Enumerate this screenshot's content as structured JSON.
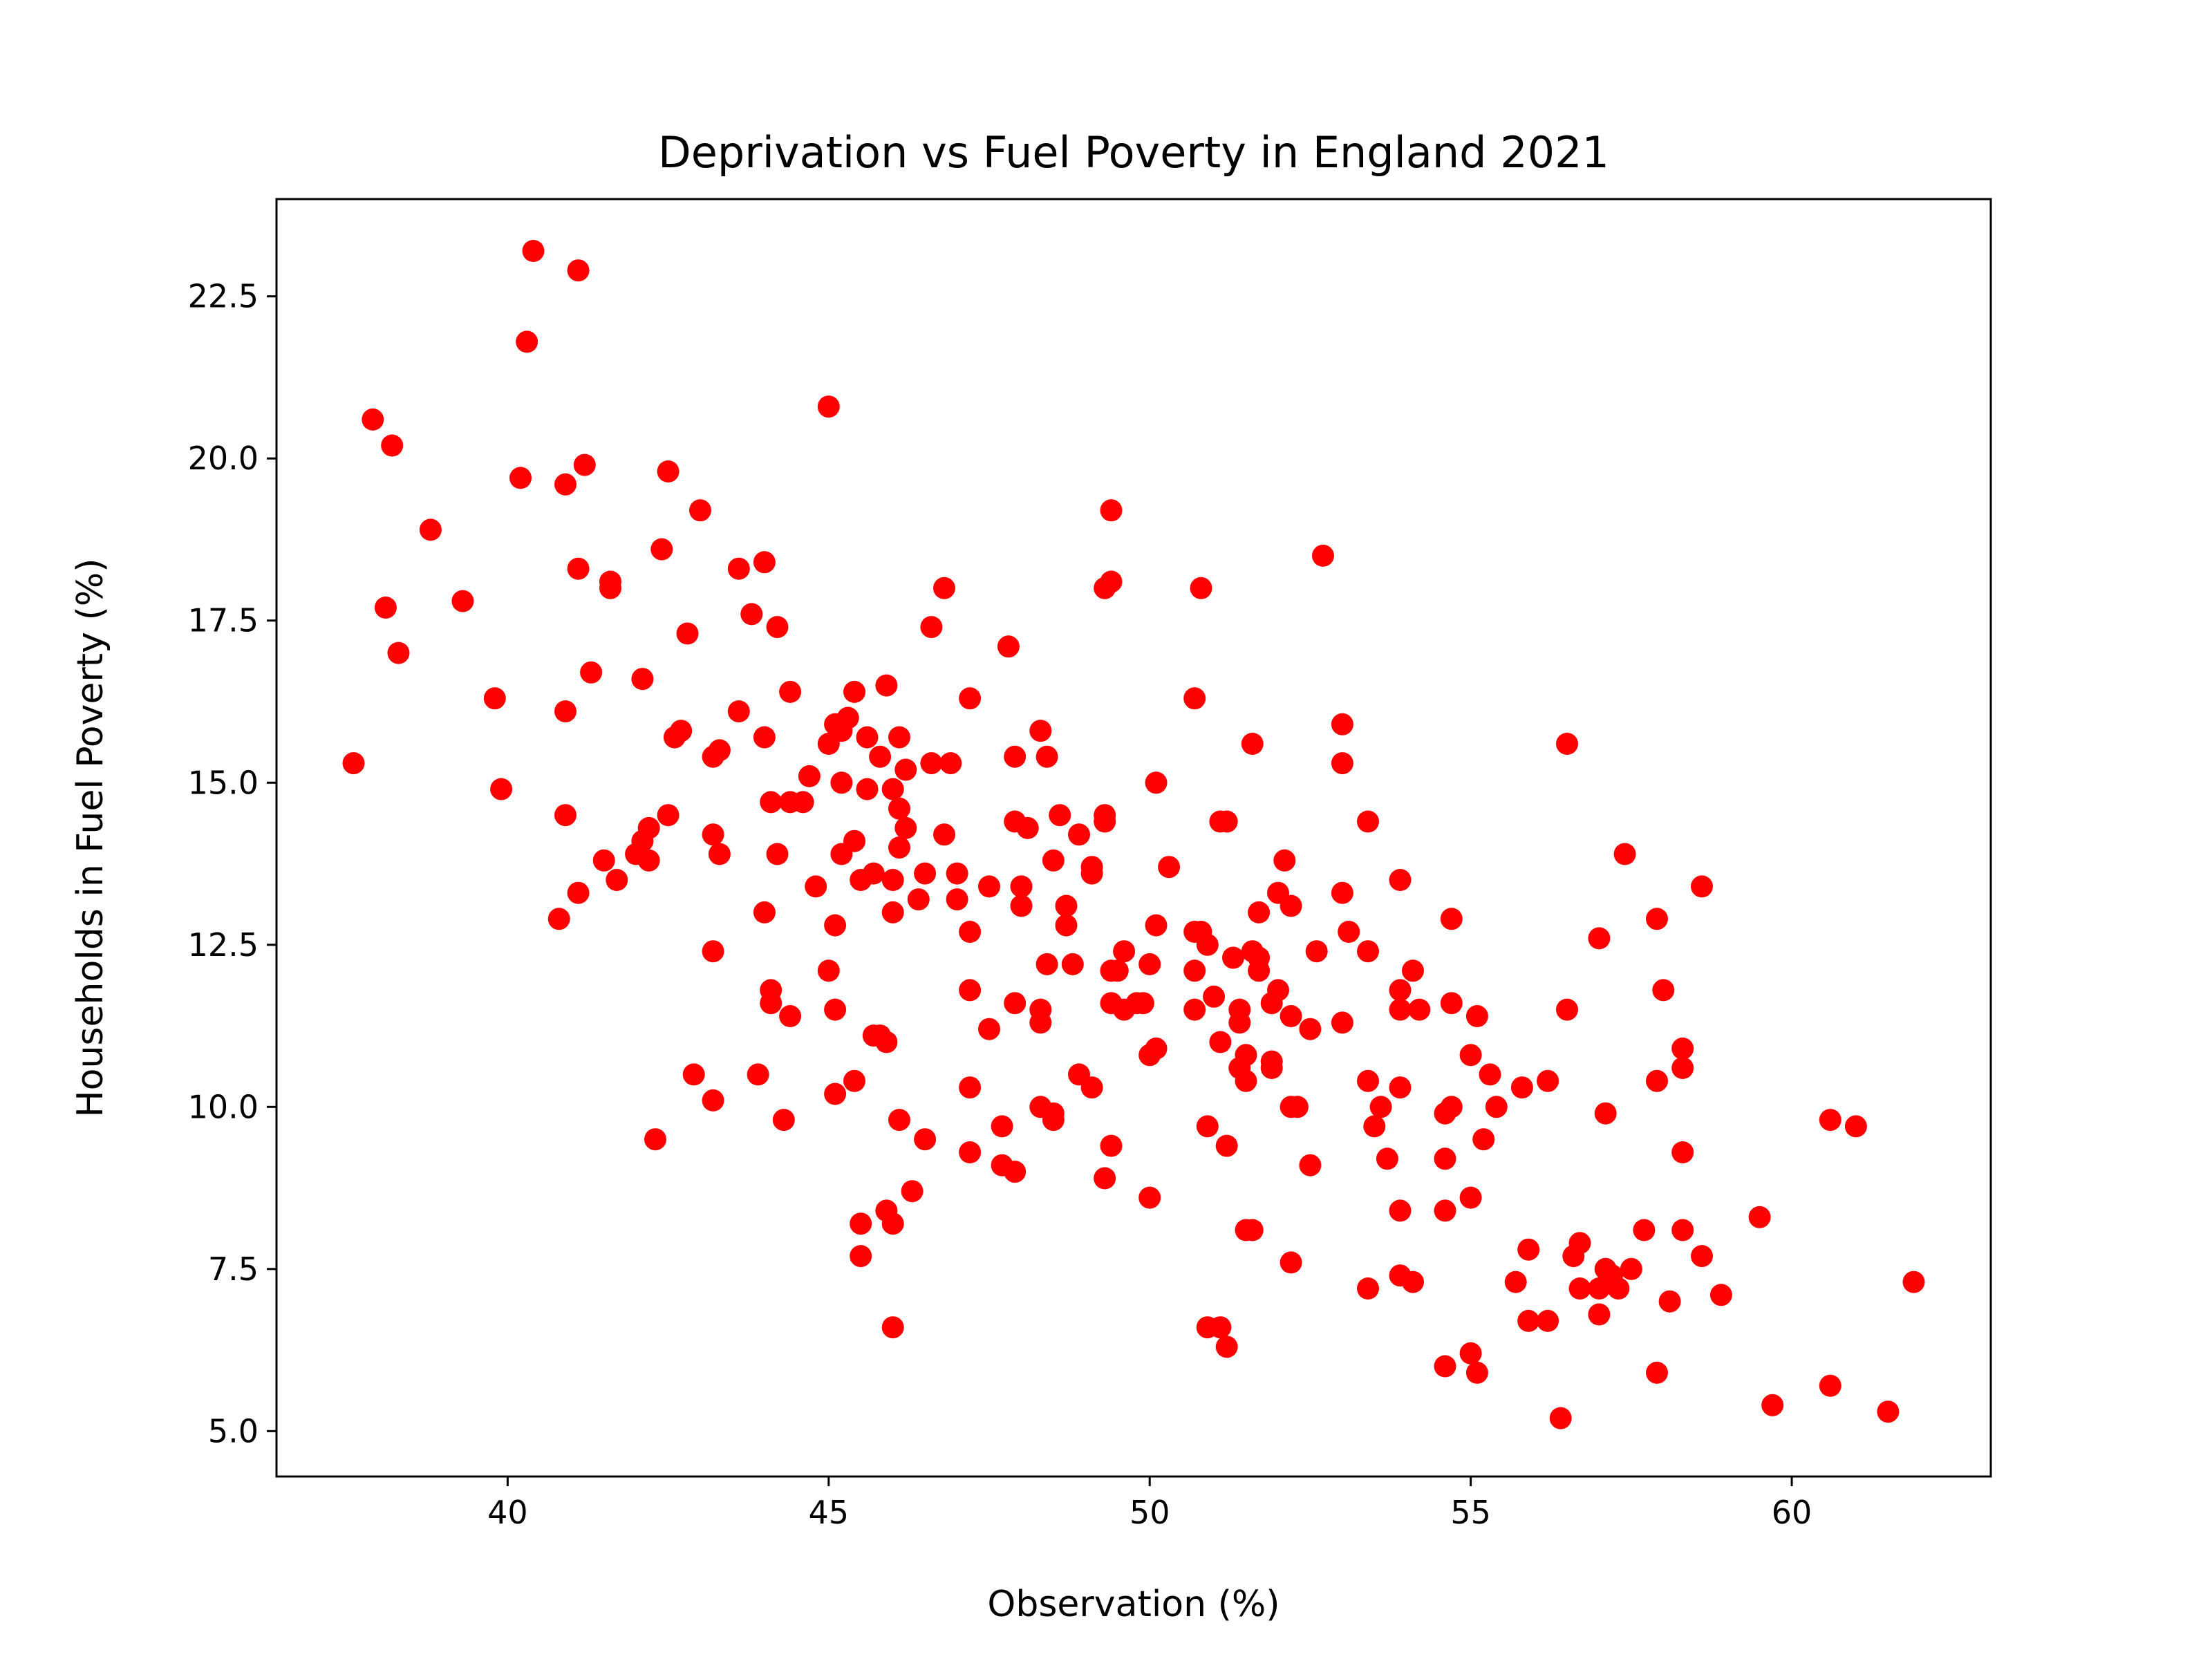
{
  "chart_data": {
    "type": "scatter",
    "title": "Deprivation vs Fuel Poverty in England 2021",
    "xlabel": "Observation (%)",
    "ylabel": "Households in Fuel Poverty (%)",
    "xlim": [
      36.4,
      63.1
    ],
    "ylim": [
      4.3,
      24.0
    ],
    "xticks": [
      40,
      45,
      50,
      55,
      60
    ],
    "yticks": [
      5.0,
      7.5,
      10.0,
      12.5,
      15.0,
      17.5,
      20.0,
      22.5
    ],
    "xtick_labels": [
      "40",
      "45",
      "50",
      "55",
      "60"
    ],
    "ytick_labels": [
      "5.0",
      "7.5",
      "10.0",
      "12.5",
      "15.0",
      "17.5",
      "20.0",
      "22.5"
    ],
    "grid": false,
    "marker_color": "#ff0000",
    "points": [
      [
        40.4,
        23.2
      ],
      [
        41.1,
        22.9
      ],
      [
        40.3,
        21.8
      ],
      [
        37.9,
        20.6
      ],
      [
        38.2,
        20.2
      ],
      [
        40.2,
        19.7
      ],
      [
        40.9,
        19.6
      ],
      [
        41.2,
        19.9
      ],
      [
        42.5,
        19.8
      ],
      [
        38.8,
        18.9
      ],
      [
        43.0,
        19.2
      ],
      [
        41.1,
        18.3
      ],
      [
        42.4,
        18.6
      ],
      [
        43.6,
        18.3
      ],
      [
        44.0,
        18.4
      ],
      [
        41.6,
        18.1
      ],
      [
        41.6,
        18.0
      ],
      [
        45.0,
        20.8
      ],
      [
        39.3,
        17.8
      ],
      [
        38.1,
        17.7
      ],
      [
        38.3,
        17.0
      ],
      [
        42.8,
        17.3
      ],
      [
        43.8,
        17.6
      ],
      [
        44.2,
        17.4
      ],
      [
        46.6,
        17.4
      ],
      [
        46.8,
        18.0
      ],
      [
        49.4,
        19.2
      ],
      [
        49.3,
        18.0
      ],
      [
        49.4,
        18.1
      ],
      [
        50.8,
        18.0
      ],
      [
        52.7,
        18.5
      ],
      [
        47.8,
        17.1
      ],
      [
        41.3,
        16.7
      ],
      [
        42.1,
        16.6
      ],
      [
        39.8,
        16.3
      ],
      [
        40.9,
        16.1
      ],
      [
        42.7,
        15.8
      ],
      [
        42.6,
        15.7
      ],
      [
        43.6,
        16.1
      ],
      [
        44.4,
        16.4
      ],
      [
        45.4,
        16.4
      ],
      [
        45.9,
        16.5
      ],
      [
        47.2,
        16.3
      ],
      [
        50.7,
        16.3
      ],
      [
        37.6,
        15.3
      ],
      [
        43.2,
        15.4
      ],
      [
        43.3,
        15.5
      ],
      [
        44.0,
        15.7
      ],
      [
        45.1,
        15.9
      ],
      [
        45.3,
        16.0
      ],
      [
        45.2,
        15.8
      ],
      [
        45.0,
        15.6
      ],
      [
        45.6,
        15.7
      ],
      [
        45.8,
        15.4
      ],
      [
        46.1,
        15.7
      ],
      [
        46.2,
        15.2
      ],
      [
        46.6,
        15.3
      ],
      [
        46.9,
        15.3
      ],
      [
        48.3,
        15.8
      ],
      [
        48.4,
        15.4
      ],
      [
        47.9,
        15.4
      ],
      [
        51.6,
        15.6
      ],
      [
        53.0,
        15.9
      ],
      [
        53.0,
        15.3
      ],
      [
        56.5,
        15.6
      ],
      [
        39.9,
        14.9
      ],
      [
        44.7,
        15.1
      ],
      [
        45.2,
        15.0
      ],
      [
        45.6,
        14.9
      ],
      [
        46.0,
        14.9
      ],
      [
        44.1,
        14.7
      ],
      [
        44.4,
        14.7
      ],
      [
        44.6,
        14.7
      ],
      [
        42.5,
        14.5
      ],
      [
        40.9,
        14.5
      ],
      [
        42.2,
        14.3
      ],
      [
        42.1,
        14.1
      ],
      [
        43.2,
        14.2
      ],
      [
        46.1,
        14.6
      ],
      [
        46.2,
        14.3
      ],
      [
        46.8,
        14.2
      ],
      [
        47.9,
        14.4
      ],
      [
        48.1,
        14.3
      ],
      [
        48.6,
        14.5
      ],
      [
        48.9,
        14.2
      ],
      [
        49.3,
        14.5
      ],
      [
        49.3,
        14.4
      ],
      [
        50.1,
        15.0
      ],
      [
        51.1,
        14.4
      ],
      [
        51.2,
        14.4
      ],
      [
        53.4,
        14.4
      ],
      [
        41.5,
        13.8
      ],
      [
        42.0,
        13.9
      ],
      [
        42.2,
        13.8
      ],
      [
        43.3,
        13.9
      ],
      [
        44.2,
        13.9
      ],
      [
        45.2,
        13.9
      ],
      [
        45.4,
        14.1
      ],
      [
        46.1,
        14.0
      ],
      [
        47.0,
        13.6
      ],
      [
        46.5,
        13.6
      ],
      [
        46.0,
        13.5
      ],
      [
        45.7,
        13.6
      ],
      [
        45.5,
        13.5
      ],
      [
        44.8,
        13.4
      ],
      [
        41.1,
        13.3
      ],
      [
        41.7,
        13.5
      ],
      [
        48.5,
        13.8
      ],
      [
        49.1,
        13.7
      ],
      [
        49.1,
        13.6
      ],
      [
        50.3,
        13.7
      ],
      [
        52.1,
        13.8
      ],
      [
        53.9,
        13.5
      ],
      [
        57.4,
        13.9
      ],
      [
        58.6,
        13.4
      ],
      [
        40.8,
        12.9
      ],
      [
        44.0,
        13.0
      ],
      [
        45.1,
        12.8
      ],
      [
        46.0,
        13.0
      ],
      [
        46.4,
        13.2
      ],
      [
        47.0,
        13.2
      ],
      [
        47.5,
        13.4
      ],
      [
        48.0,
        13.4
      ],
      [
        48.0,
        13.1
      ],
      [
        48.7,
        13.1
      ],
      [
        48.7,
        12.8
      ],
      [
        50.1,
        12.8
      ],
      [
        50.7,
        12.7
      ],
      [
        50.8,
        12.7
      ],
      [
        51.7,
        13.0
      ],
      [
        52.0,
        13.3
      ],
      [
        52.2,
        13.1
      ],
      [
        53.0,
        13.3
      ],
      [
        53.1,
        12.7
      ],
      [
        54.7,
        12.9
      ],
      [
        57.0,
        12.6
      ],
      [
        57.9,
        12.9
      ],
      [
        43.2,
        12.4
      ],
      [
        45.0,
        12.1
      ],
      [
        47.2,
        12.7
      ],
      [
        48.4,
        12.2
      ],
      [
        48.8,
        12.2
      ],
      [
        49.4,
        12.1
      ],
      [
        49.5,
        12.1
      ],
      [
        49.6,
        12.4
      ],
      [
        50.0,
        12.2
      ],
      [
        50.7,
        12.1
      ],
      [
        50.9,
        12.5
      ],
      [
        51.3,
        12.3
      ],
      [
        51.6,
        12.4
      ],
      [
        51.7,
        12.3
      ],
      [
        51.7,
        12.1
      ],
      [
        52.6,
        12.4
      ],
      [
        53.4,
        12.4
      ],
      [
        54.1,
        12.1
      ],
      [
        44.1,
        11.8
      ],
      [
        44.1,
        11.6
      ],
      [
        44.4,
        11.4
      ],
      [
        45.1,
        11.5
      ],
      [
        47.2,
        11.8
      ],
      [
        47.9,
        11.6
      ],
      [
        48.3,
        11.5
      ],
      [
        48.3,
        11.3
      ],
      [
        49.4,
        11.6
      ],
      [
        49.6,
        11.5
      ],
      [
        49.8,
        11.6
      ],
      [
        49.9,
        11.6
      ],
      [
        50.7,
        11.5
      ],
      [
        51.0,
        11.7
      ],
      [
        51.4,
        11.5
      ],
      [
        51.4,
        11.3
      ],
      [
        51.9,
        11.6
      ],
      [
        52.0,
        11.8
      ],
      [
        52.2,
        11.4
      ],
      [
        52.5,
        11.2
      ],
      [
        53.0,
        11.3
      ],
      [
        53.9,
        11.8
      ],
      [
        53.9,
        11.5
      ],
      [
        54.2,
        11.5
      ],
      [
        54.7,
        11.6
      ],
      [
        55.1,
        11.4
      ],
      [
        56.5,
        11.5
      ],
      [
        58.0,
        11.8
      ],
      [
        47.5,
        11.2
      ],
      [
        45.7,
        11.1
      ],
      [
        45.8,
        11.1
      ],
      [
        45.9,
        11.0
      ],
      [
        51.1,
        11.0
      ],
      [
        42.9,
        10.5
      ],
      [
        43.9,
        10.5
      ],
      [
        45.4,
        10.4
      ],
      [
        45.1,
        10.2
      ],
      [
        43.2,
        10.1
      ],
      [
        47.2,
        10.3
      ],
      [
        48.9,
        10.5
      ],
      [
        49.1,
        10.3
      ],
      [
        50.0,
        10.8
      ],
      [
        50.1,
        10.9
      ],
      [
        51.5,
        10.8
      ],
      [
        51.4,
        10.6
      ],
      [
        51.9,
        10.6
      ],
      [
        51.9,
        10.7
      ],
      [
        51.5,
        10.4
      ],
      [
        53.4,
        10.4
      ],
      [
        53.9,
        10.3
      ],
      [
        55.0,
        10.8
      ],
      [
        55.3,
        10.5
      ],
      [
        55.8,
        10.3
      ],
      [
        56.2,
        10.4
      ],
      [
        57.9,
        10.4
      ],
      [
        58.3,
        10.9
      ],
      [
        58.3,
        10.6
      ],
      [
        44.3,
        9.8
      ],
      [
        42.3,
        9.5
      ],
      [
        46.1,
        9.8
      ],
      [
        46.5,
        9.5
      ],
      [
        48.3,
        10.0
      ],
      [
        48.5,
        9.9
      ],
      [
        48.5,
        9.8
      ],
      [
        50.9,
        9.7
      ],
      [
        52.2,
        10.0
      ],
      [
        52.3,
        10.0
      ],
      [
        53.6,
        10.0
      ],
      [
        53.5,
        9.7
      ],
      [
        54.7,
        10.0
      ],
      [
        54.6,
        9.9
      ],
      [
        55.4,
        10.0
      ],
      [
        57.1,
        9.9
      ],
      [
        60.6,
        9.8
      ],
      [
        61.0,
        9.7
      ],
      [
        47.2,
        9.3
      ],
      [
        47.7,
        9.1
      ],
      [
        47.9,
        9.0
      ],
      [
        47.7,
        9.7
      ],
      [
        49.4,
        9.4
      ],
      [
        49.3,
        8.9
      ],
      [
        50.0,
        8.6
      ],
      [
        51.2,
        9.4
      ],
      [
        52.5,
        9.1
      ],
      [
        53.7,
        9.2
      ],
      [
        54.6,
        9.2
      ],
      [
        55.2,
        9.5
      ],
      [
        58.3,
        9.3
      ],
      [
        45.9,
        8.4
      ],
      [
        46.0,
        8.2
      ],
      [
        46.3,
        8.7
      ],
      [
        45.5,
        8.2
      ],
      [
        45.5,
        7.7
      ],
      [
        51.5,
        8.1
      ],
      [
        51.6,
        8.1
      ],
      [
        53.9,
        8.4
      ],
      [
        54.6,
        8.4
      ],
      [
        55.0,
        8.6
      ],
      [
        59.5,
        8.3
      ],
      [
        52.2,
        7.6
      ],
      [
        53.4,
        7.2
      ],
      [
        53.9,
        7.4
      ],
      [
        54.1,
        7.3
      ],
      [
        55.7,
        7.3
      ],
      [
        55.9,
        7.8
      ],
      [
        56.6,
        7.7
      ],
      [
        56.7,
        7.9
      ],
      [
        56.7,
        7.2
      ],
      [
        57.0,
        7.2
      ],
      [
        57.1,
        7.5
      ],
      [
        57.2,
        7.4
      ],
      [
        57.3,
        7.2
      ],
      [
        57.5,
        7.5
      ],
      [
        57.7,
        8.1
      ],
      [
        58.3,
        8.1
      ],
      [
        58.6,
        7.7
      ],
      [
        58.9,
        7.1
      ],
      [
        61.9,
        7.3
      ],
      [
        46.0,
        6.6
      ],
      [
        50.9,
        6.6
      ],
      [
        51.1,
        6.6
      ],
      [
        51.2,
        6.3
      ],
      [
        55.9,
        6.7
      ],
      [
        56.2,
        6.7
      ],
      [
        57.0,
        6.8
      ],
      [
        58.1,
        7.0
      ],
      [
        54.6,
        6.0
      ],
      [
        55.0,
        6.2
      ],
      [
        55.1,
        5.9
      ],
      [
        57.9,
        5.9
      ],
      [
        56.4,
        5.2
      ],
      [
        59.7,
        5.4
      ],
      [
        60.6,
        5.7
      ],
      [
        61.5,
        5.3
      ]
    ]
  }
}
